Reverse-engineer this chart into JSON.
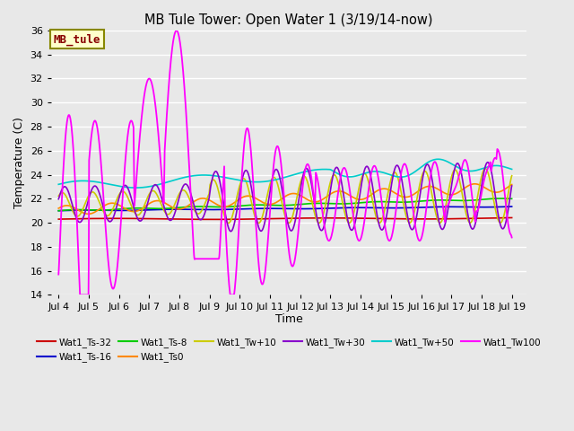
{
  "title": "MB Tule Tower: Open Water 1 (3/19/14-now)",
  "xlabel": "Time",
  "ylabel": "Temperature (C)",
  "ylim": [
    14,
    36
  ],
  "yticks": [
    14,
    16,
    18,
    20,
    22,
    24,
    26,
    28,
    30,
    32,
    34,
    36
  ],
  "xtick_labels": [
    "Jul 4",
    "Jul 5",
    "Jul 6",
    "Jul 7",
    "Jul 8",
    "Jul 9",
    "Jul 10",
    "Jul 11",
    "Jul 12",
    "Jul 13",
    "Jul 14",
    "Jul 15",
    "Jul 16",
    "Jul 17",
    "Jul 18",
    "Jul 19"
  ],
  "xtick_positions": [
    0,
    1,
    2,
    3,
    4,
    5,
    6,
    7,
    8,
    9,
    10,
    11,
    12,
    13,
    14,
    15
  ],
  "plot_bg_color": "#e8e8e8",
  "grid_color": "#ffffff",
  "series": {
    "Wat1_Ts-32": {
      "color": "#cc0000",
      "lw": 1.2
    },
    "Wat1_Ts-16": {
      "color": "#0000cc",
      "lw": 1.2
    },
    "Wat1_Ts-8": {
      "color": "#00cc00",
      "lw": 1.2
    },
    "Wat1_Ts0": {
      "color": "#ff8800",
      "lw": 1.2
    },
    "Wat1_Tw+10": {
      "color": "#cccc00",
      "lw": 1.2
    },
    "Wat1_Tw+30": {
      "color": "#8800cc",
      "lw": 1.2
    },
    "Wat1_Tw+50": {
      "color": "#00cccc",
      "lw": 1.2
    },
    "Wat1_Tw100": {
      "color": "#ff00ff",
      "lw": 1.3
    }
  },
  "legend_box": {
    "text": "MB_tule",
    "bg": "#ffffcc",
    "border": "#888800",
    "text_color": "#880000",
    "fontsize": 9
  }
}
